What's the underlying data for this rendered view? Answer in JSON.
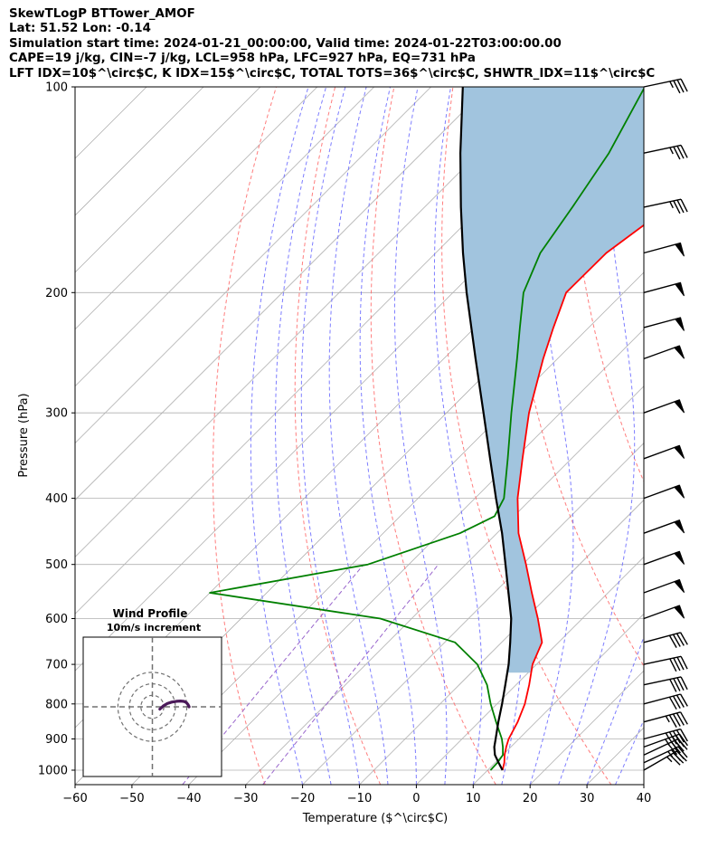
{
  "header": {
    "title": "SkewTLogP BTTower_AMOF",
    "location": "Lat: 51.52   Lon: -0.14",
    "times": "Simulation start time: 2024-01-21_00:00:00, Valid time: 2024-01-22T03:00:00.00",
    "indices_1": "CAPE=19 j/kg, CIN=-7 j/kg, LCL=958 hPa, LFC=927 hPa, EQ=731 hPa",
    "indices_2": "LFT IDX=10$^\\circ$C, K IDX=15$^\\circ$C, TOTAL TOTS=36$^\\circ$C, SHWTR_IDX=11$^\\circ$C"
  },
  "colors": {
    "temperature": "#ff0000",
    "dewpoint": "#008000",
    "parcel": "#000000",
    "cape_fill": "#a1c4de",
    "dry_adiabat": "#ff6666",
    "moist_adiabat": "#6666ff",
    "mixing_ratio": "#9966cc",
    "isotherm": "#b0b0b0",
    "hodograph": "#4b1a5a"
  },
  "chart_data": {
    "type": "line",
    "xlabel": "Temperature ($^\\circ$C)",
    "ylabel": "Pressure (hPa)",
    "xlim": [
      -60,
      40
    ],
    "ylim": [
      1050,
      100
    ],
    "x_ticks": [
      -60,
      -50,
      -40,
      -30,
      -20,
      -10,
      0,
      10,
      20,
      30,
      40
    ],
    "y_ticks": [
      100,
      200,
      300,
      400,
      500,
      600,
      700,
      800,
      900,
      1000
    ],
    "y_scale": "log",
    "grid": true,
    "skew": "45deg",
    "series": [
      {
        "key": "temperature",
        "pressure": [
          1000,
          975,
          950,
          925,
          900,
          850,
          800,
          750,
          700,
          650,
          600,
          550,
          500,
          450,
          400,
          350,
          300,
          250,
          225,
          200,
          175,
          150,
          125,
          100
        ],
        "values": [
          12.6,
          11.6,
          10.3,
          9.2,
          8.2,
          6.8,
          4.9,
          2.3,
          -0.7,
          -2.9,
          -7.8,
          -13.4,
          -19.4,
          -26.2,
          -32.5,
          -38.6,
          -45.5,
          -52.5,
          -56.2,
          -60.1,
          -60.0,
          -57.2,
          -55.9,
          -52.3
        ]
      },
      {
        "key": "dewpoint",
        "pressure": [
          1000,
          975,
          950,
          925,
          900,
          850,
          800,
          750,
          700,
          650,
          600,
          550,
          500,
          450,
          425,
          400,
          350,
          300,
          250,
          225,
          200,
          175,
          150,
          125,
          100
        ],
        "values": [
          10.5,
          10.4,
          10.0,
          8.6,
          7.0,
          3.0,
          -1.1,
          -5.1,
          -10.4,
          -18.2,
          -35.5,
          -70.0,
          -47.2,
          -36.5,
          -33.4,
          -34.9,
          -41.2,
          -48.6,
          -57.1,
          -62.1,
          -67.6,
          -71.6,
          -74.0,
          -77.1,
          -82.4
        ]
      },
      {
        "key": "parcel",
        "pressure": [
          1000,
          975,
          950,
          925,
          900,
          850,
          800,
          750,
          700,
          650,
          600,
          550,
          500,
          450,
          400,
          350,
          300,
          250,
          200,
          175,
          150,
          125,
          100
        ],
        "values": [
          12.6,
          10.6,
          8.6,
          7.1,
          5.9,
          3.4,
          0.9,
          -1.9,
          -4.9,
          -8.5,
          -12.5,
          -17.5,
          -23.0,
          -29.1,
          -36.3,
          -44.3,
          -53.5,
          -64.4,
          -77.6,
          -85.2,
          -93.6,
          -103.2,
          -114.4
        ]
      }
    ],
    "cape_region": "between temperature and parcel curves",
    "wind_barbs": {
      "pressure": [
        1000,
        975,
        950,
        925,
        900,
        850,
        800,
        750,
        700,
        650,
        600,
        550,
        500,
        450,
        400,
        350,
        300,
        250,
        225,
        200,
        175,
        150,
        125,
        100
      ],
      "speed_kt": [
        35,
        35,
        40,
        45,
        45,
        45,
        40,
        40,
        40,
        40,
        50,
        50,
        50,
        50,
        50,
        50,
        50,
        50,
        50,
        50,
        50,
        35,
        35,
        35
      ],
      "direction_deg": [
        240,
        245,
        245,
        250,
        255,
        255,
        255,
        258,
        258,
        255,
        250,
        250,
        250,
        250,
        250,
        250,
        250,
        250,
        255,
        255,
        255,
        258,
        258,
        258
      ]
    },
    "hodograph": {
      "title": "Wind Profile",
      "subtitle": "10m/s increment",
      "rings_ms": [
        10,
        20,
        30
      ],
      "u_ms": [
        6.5,
        9.5,
        13.0,
        16.8,
        21.0,
        24.5,
        27.5,
        29.5,
        31.0,
        32.0
      ],
      "v_ms": [
        -2.0,
        0.8,
        2.8,
        4.1,
        4.8,
        5.0,
        4.7,
        3.8,
        2.0,
        0.0
      ]
    }
  }
}
